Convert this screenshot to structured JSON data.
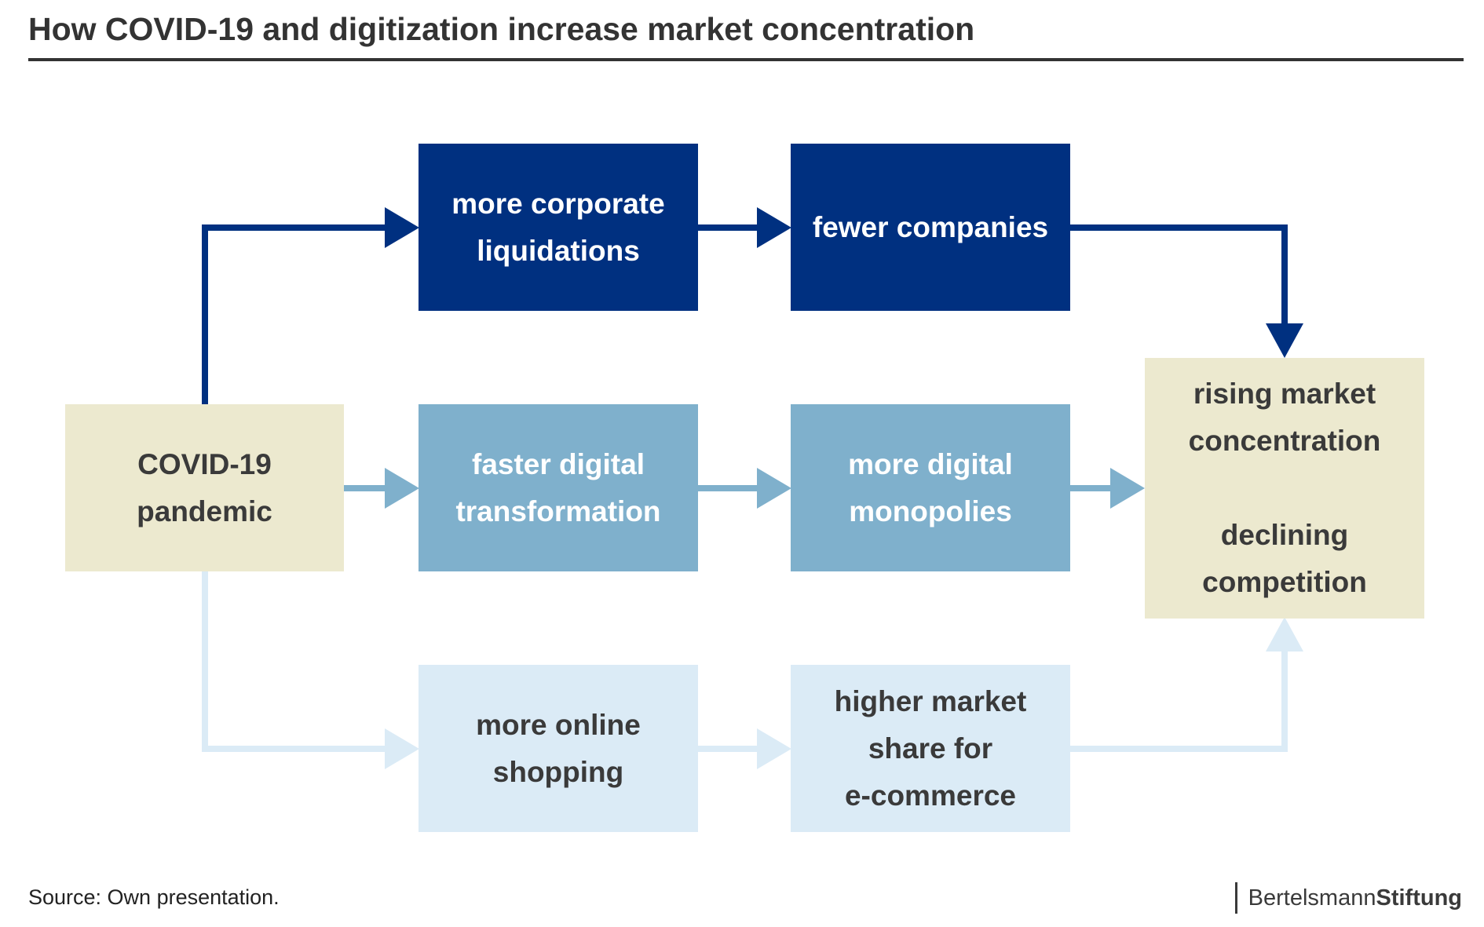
{
  "title": "How COVID-19 and digitization increase market concentration",
  "boxes": {
    "covid": [
      "COVID-19",
      "pandemic"
    ],
    "liquidations": [
      "more corporate",
      "liquidations"
    ],
    "fewer": [
      "fewer companies"
    ],
    "digital_transformation": [
      "faster digital",
      "transformation"
    ],
    "digital_monopolies": [
      "more digital",
      "monopolies"
    ],
    "online_shopping": [
      "more online",
      "shopping"
    ],
    "ecommerce": [
      "higher market",
      "share for",
      "e-commerce"
    ],
    "outcome": {
      "line1": [
        "rising market",
        "concentration"
      ],
      "line2": [
        "declining",
        "competition"
      ]
    }
  },
  "colors": {
    "dark_blue": "#003080",
    "mid_blue": "#7fb0cc",
    "light_blue": "#dbebf6",
    "beige": "#ece9cf",
    "text_dark": "#3a3a3a"
  },
  "footer": {
    "source": "Source: Own presentation.",
    "logo_regular": "Bertelsmann",
    "logo_bold": "Stiftung"
  }
}
